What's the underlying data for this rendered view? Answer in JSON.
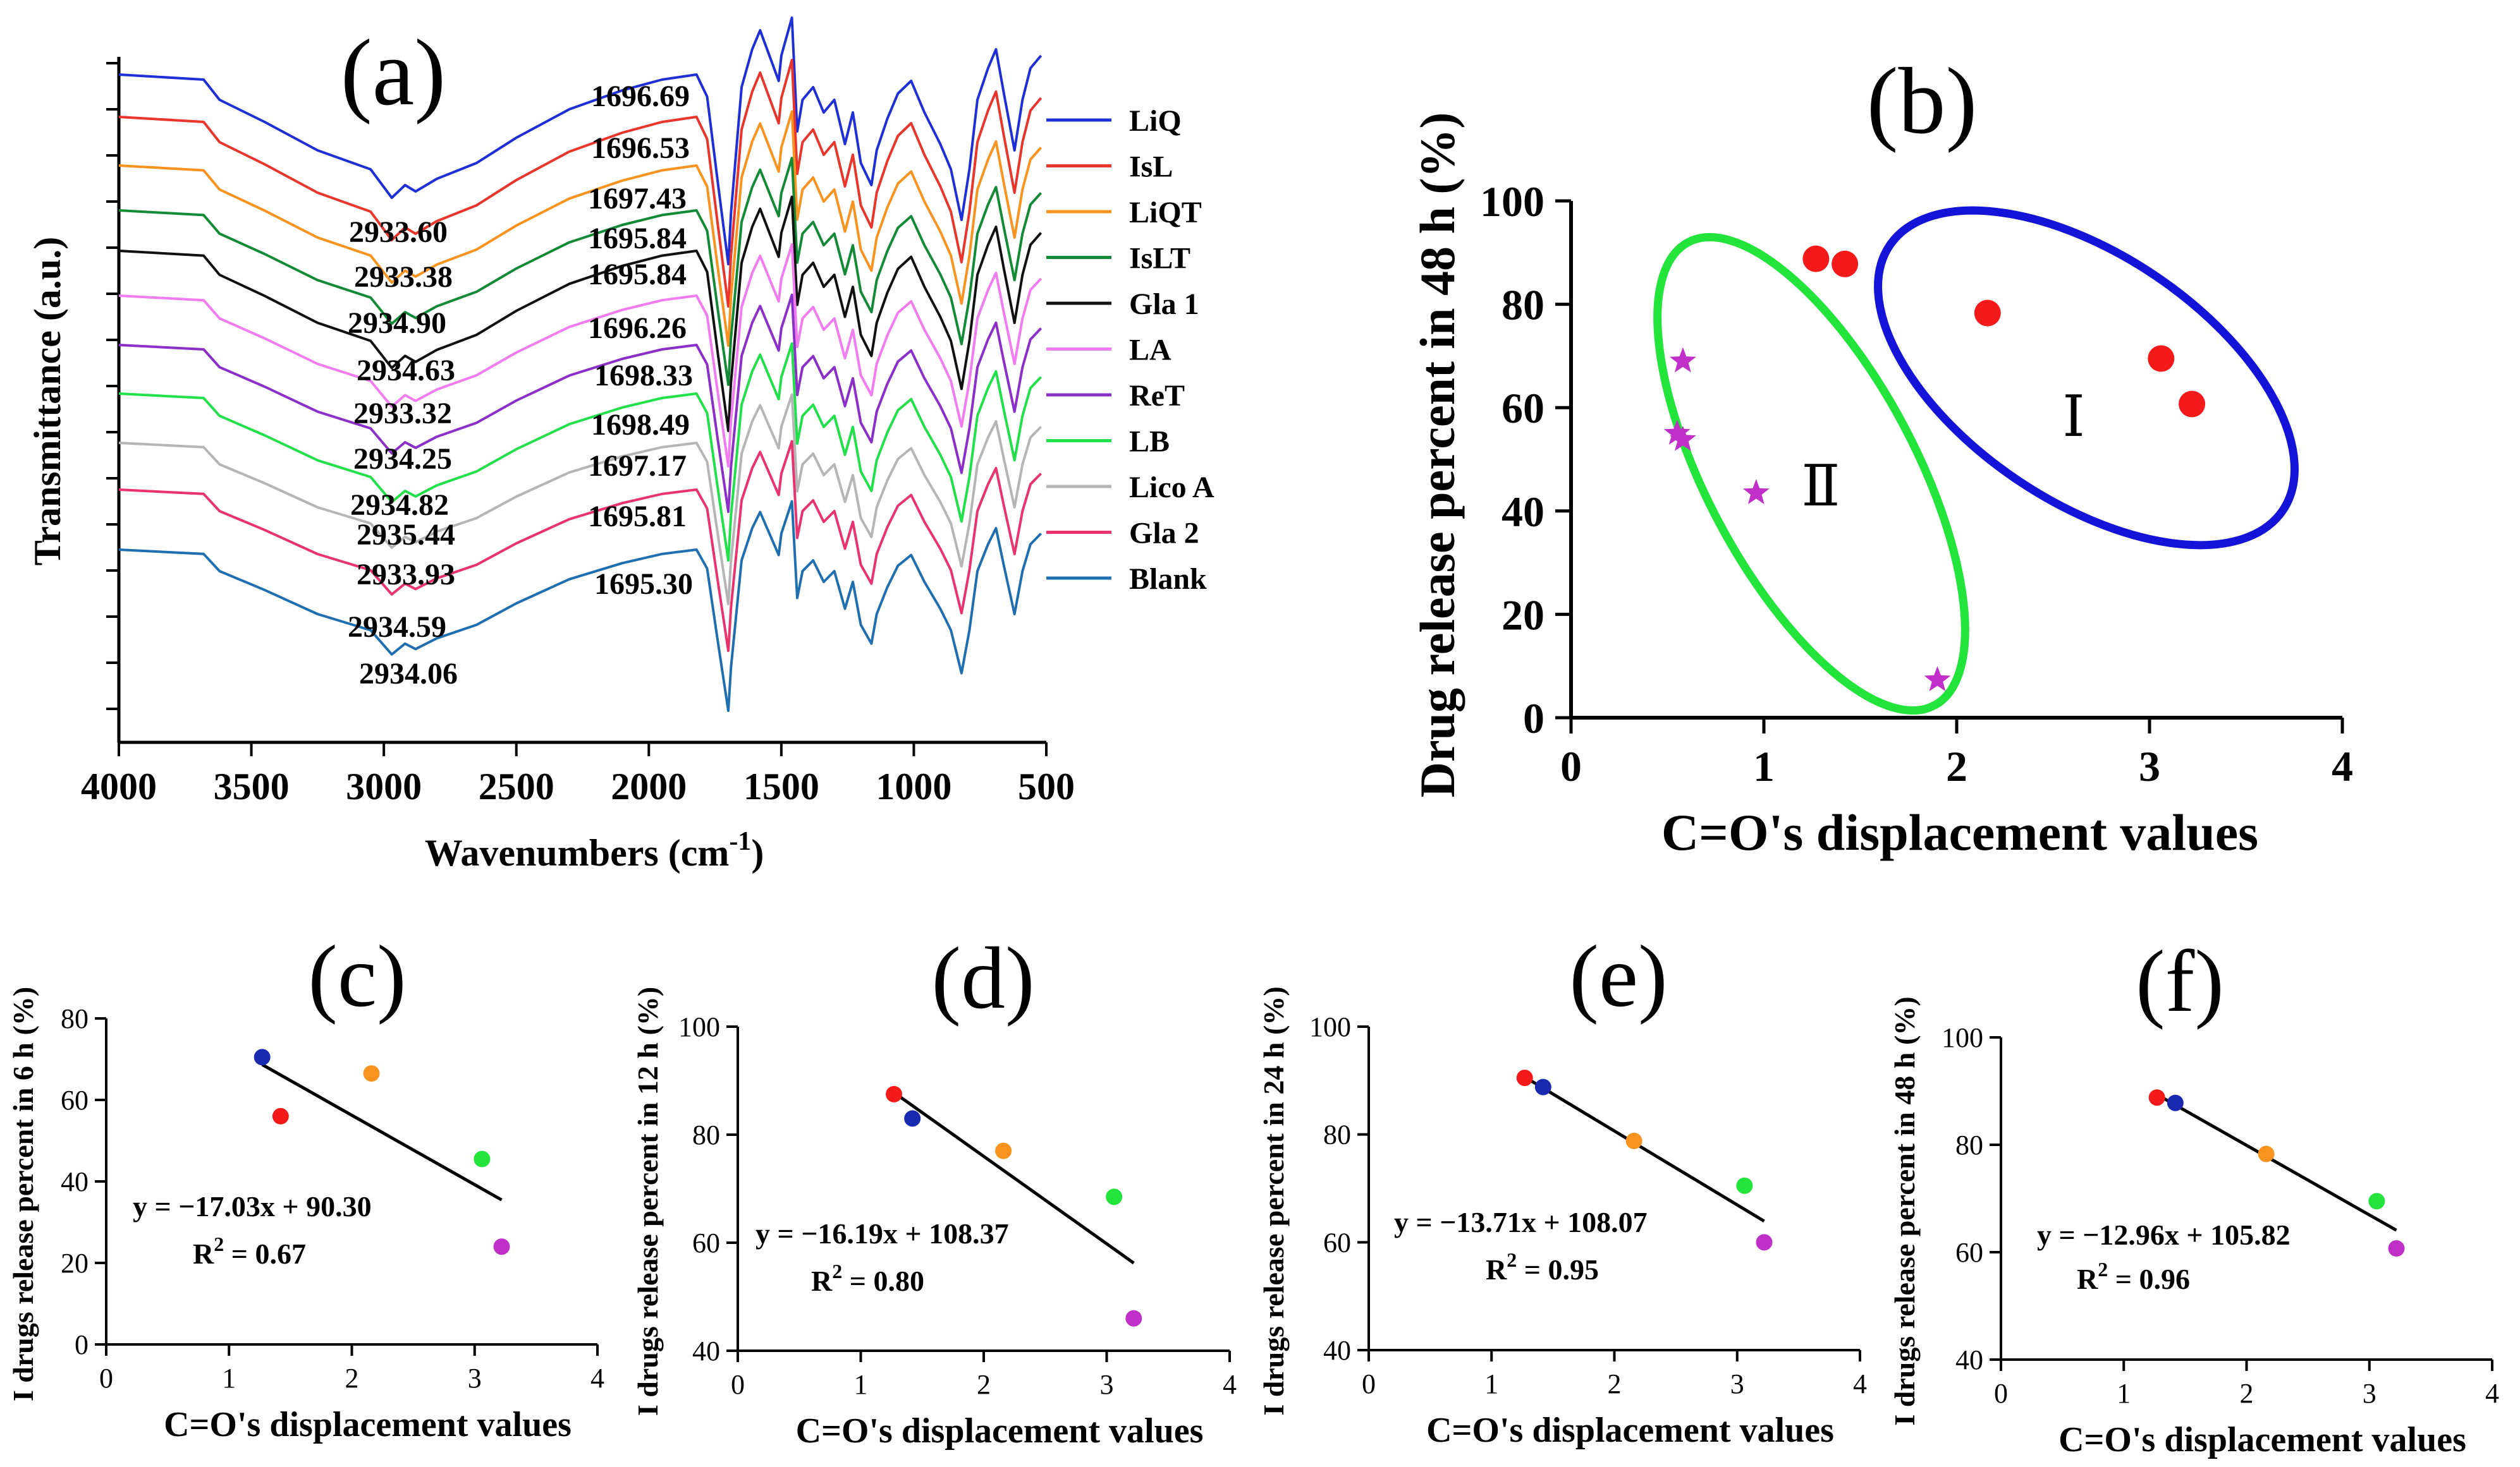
{
  "chart_data": [
    {
      "panel": "(a)",
      "type": "line",
      "xlabel": "Wavenumbers (cm",
      "xlabel_sup": "-1",
      "xlabel_close": ")",
      "ylabel": "Transmittance (a.u.)",
      "x_reversed": true,
      "xlim": [
        4000,
        500
      ],
      "xticks": [
        "4000",
        "3500",
        "3000",
        "2500",
        "2000",
        "1500",
        "1000",
        "500"
      ],
      "series": [
        {
          "name": "LiQ",
          "color": "#1f2fd6",
          "peak_2930": "2933.60",
          "peak_1700": "1696.69"
        },
        {
          "name": "IsL",
          "color": "#e8362d",
          "peak_2930": "2933.38",
          "peak_1700": "1696.53"
        },
        {
          "name": "LiQT",
          "color": "#f7931e",
          "peak_2930": "2934.90",
          "peak_1700": "1697.43"
        },
        {
          "name": "IsLT",
          "color": "#138a36",
          "peak_2930": "2934.63",
          "peak_1700": "1695.84"
        },
        {
          "name": "Gla 1",
          "color": "#111111",
          "peak_2930": "2933.32",
          "peak_1700": "1695.84"
        },
        {
          "name": "LA",
          "color": "#f07cf0",
          "peak_2930": "2934.25",
          "peak_1700": "1696.26"
        },
        {
          "name": "ReT",
          "color": "#8a2fc7",
          "peak_2930": "2934.82",
          "peak_1700": "1698.33"
        },
        {
          "name": "LB",
          "color": "#22e04a",
          "peak_2930": "2935.44",
          "peak_1700": "1698.49"
        },
        {
          "name": "Lico A",
          "color": "#b5b5b5",
          "peak_2930": "2933.93",
          "peak_1700": "1697.17"
        },
        {
          "name": "Gla 2",
          "color": "#e8336f",
          "peak_2930": "2934.59",
          "peak_1700": "1695.81"
        },
        {
          "name": "Blank",
          "color": "#1f6fb0",
          "peak_2930": "2934.06",
          "peak_1700": "1695.30"
        }
      ]
    },
    {
      "panel": "(b)",
      "type": "scatter",
      "xlabel": "C=O's displacement values",
      "ylabel": "Drug release percent in 48 h (%)",
      "xlim": [
        0,
        4
      ],
      "ylim": [
        0,
        100
      ],
      "xticks": [
        "0",
        "1",
        "2",
        "3",
        "4"
      ],
      "yticks": [
        "0",
        "20",
        "40",
        "60",
        "80",
        "100"
      ],
      "groups": [
        {
          "label": "Ⅰ",
          "marker": "circle",
          "color": "#f41a1a",
          "ellipse_color": "#1414d8",
          "points": [
            [
              1.27,
              88.8
            ],
            [
              1.42,
              87.8
            ],
            [
              2.16,
              78.3
            ],
            [
              3.06,
              69.5
            ],
            [
              3.22,
              60.7
            ]
          ]
        },
        {
          "label": "Ⅱ",
          "marker": "star",
          "color": "#c030c8",
          "ellipse_color": "#22e43a",
          "points": [
            [
              0.58,
              69.0
            ],
            [
              0.55,
              55.0
            ],
            [
              0.58,
              53.8
            ],
            [
              0.96,
              43.5
            ],
            [
              1.9,
              7.3
            ]
          ]
        }
      ]
    },
    {
      "panel": "(c)",
      "type": "scatter",
      "xlabel": "C=O's displacement values",
      "ylabel": "I drugs release percent in 6 h (%)",
      "xlim": [
        0,
        4
      ],
      "ylim": [
        0,
        80
      ],
      "xticks": [
        "0",
        "1",
        "2",
        "3",
        "4"
      ],
      "yticks": [
        "0",
        "20",
        "40",
        "60",
        "80"
      ],
      "points": [
        {
          "x": 1.27,
          "y": 70.5,
          "color": "#1a2ab0"
        },
        {
          "x": 1.42,
          "y": 56.0,
          "color": "#f41a1a"
        },
        {
          "x": 2.16,
          "y": 66.5,
          "color": "#f7931e"
        },
        {
          "x": 3.06,
          "y": 45.5,
          "color": "#22e43a"
        },
        {
          "x": 3.22,
          "y": 24.0,
          "color": "#c030c8"
        }
      ],
      "equation": "y = −17.03x + 90.30",
      "r2_label": "R",
      "r2_sup": "2",
      "r2_value": " = 0.67",
      "slope": -17.03,
      "intercept": 90.3
    },
    {
      "panel": "(d)",
      "type": "scatter",
      "xlabel": "C=O's displacement values",
      "ylabel": "I drugs release percent in 12 h (%)",
      "xlim": [
        0,
        4
      ],
      "ylim": [
        40,
        100
      ],
      "xticks": [
        "0",
        "1",
        "2",
        "3",
        "4"
      ],
      "yticks": [
        "40",
        "60",
        "80",
        "100"
      ],
      "points": [
        {
          "x": 1.27,
          "y": 87.5,
          "color": "#f41a1a"
        },
        {
          "x": 1.42,
          "y": 83.0,
          "color": "#1a2ab0"
        },
        {
          "x": 2.16,
          "y": 77.0,
          "color": "#f7931e"
        },
        {
          "x": 3.06,
          "y": 68.5,
          "color": "#22e43a"
        },
        {
          "x": 3.22,
          "y": 46.0,
          "color": "#c030c8"
        }
      ],
      "equation": "y = −16.19x + 108.37",
      "r2_label": "R",
      "r2_sup": "2",
      "r2_value": " = 0.80",
      "slope": -16.19,
      "intercept": 108.37
    },
    {
      "panel": "(e)",
      "type": "scatter",
      "xlabel": "C=O's displacement values",
      "ylabel": "I drugs release percent in 24 h (%)",
      "xlim": [
        0,
        4
      ],
      "ylim": [
        40,
        100
      ],
      "xticks": [
        "0",
        "1",
        "2",
        "3",
        "4"
      ],
      "yticks": [
        "40",
        "60",
        "80",
        "100"
      ],
      "points": [
        {
          "x": 1.27,
          "y": 90.5,
          "color": "#f41a1a"
        },
        {
          "x": 1.42,
          "y": 88.8,
          "color": "#1a2ab0"
        },
        {
          "x": 2.16,
          "y": 78.8,
          "color": "#f7931e"
        },
        {
          "x": 3.06,
          "y": 70.5,
          "color": "#22e43a"
        },
        {
          "x": 3.22,
          "y": 60.0,
          "color": "#c030c8"
        }
      ],
      "equation": "y = −13.71x + 108.07",
      "r2_label": "R",
      "r2_sup": "2",
      "r2_value": " = 0.95",
      "slope": -13.71,
      "intercept": 108.07
    },
    {
      "panel": "(f)",
      "type": "scatter",
      "xlabel": "C=O's displacement values",
      "ylabel": "I drugs release percent in 48 h (%)",
      "xlim": [
        0,
        4
      ],
      "ylim": [
        40,
        100
      ],
      "xticks": [
        "0",
        "1",
        "2",
        "3",
        "4"
      ],
      "yticks": [
        "40",
        "60",
        "80",
        "100"
      ],
      "points": [
        {
          "x": 1.27,
          "y": 88.8,
          "color": "#f41a1a"
        },
        {
          "x": 1.42,
          "y": 87.8,
          "color": "#1a2ab0"
        },
        {
          "x": 2.16,
          "y": 78.3,
          "color": "#f7931e"
        },
        {
          "x": 3.06,
          "y": 69.5,
          "color": "#22e43a"
        },
        {
          "x": 3.22,
          "y": 60.7,
          "color": "#c030c8"
        }
      ],
      "equation": "y = −12.96x + 105.82",
      "r2_label": "R",
      "r2_sup": "2",
      "r2_value": " = 0.96",
      "slope": -12.96,
      "intercept": 105.82
    }
  ]
}
